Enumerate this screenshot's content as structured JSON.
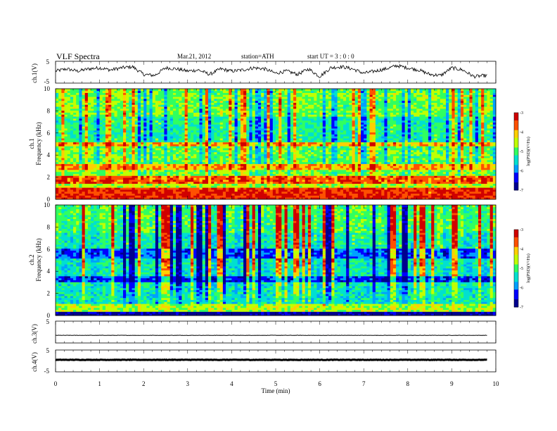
{
  "header": {
    "title": "VLF  Spectra",
    "date": "Mar.21, 2012",
    "station": "station=ATH",
    "start": "start  UT  =   3  : 0  : 0"
  },
  "colors": {
    "colormap": [
      "#000000",
      "#00008f",
      "#0000ff",
      "#00a0ff",
      "#00e0d0",
      "#30ff60",
      "#c0ff00",
      "#ffd000",
      "#ff5000",
      "#d00000",
      "#ffffff"
    ]
  },
  "chart_data": [
    {
      "type": "line",
      "name": "ch1-waveform",
      "ylabel": "ch.1(V)",
      "ylim": [
        -5,
        5
      ],
      "yticks": [
        "5",
        "-5"
      ],
      "xlim": [
        0,
        10
      ],
      "x": [
        0,
        0.25,
        0.5,
        0.75,
        1,
        1.25,
        1.5,
        1.75,
        2,
        2.25,
        2.5,
        2.75,
        3,
        3.25,
        3.5,
        3.75,
        4,
        4.25,
        4.5,
        4.75,
        5,
        5.25,
        5.5,
        5.75,
        6,
        6.25,
        6.5,
        6.75,
        7,
        7.25,
        7.5,
        7.75,
        8,
        8.25,
        8.5,
        8.75,
        9,
        9.25,
        9.5,
        9.8
      ],
      "y": [
        0.5,
        1.5,
        0.5,
        1.5,
        2.0,
        1.0,
        2.0,
        2.5,
        -1.0,
        -1.5,
        2.0,
        1.5,
        0.5,
        1.0,
        -1.0,
        1.5,
        0.5,
        1.0,
        2.0,
        1.5,
        -0.5,
        0.5,
        -1.0,
        1.5,
        -2.0,
        2.0,
        2.5,
        1.5,
        -0.5,
        0.5,
        1.5,
        3.0,
        2.0,
        1.0,
        -1.0,
        -1.5,
        2.0,
        1.0,
        -2.0,
        -1.5
      ]
    },
    {
      "type": "heatmap",
      "name": "ch1-spectrogram",
      "ylabel": "Frequency  (kHz)",
      "channel_label": "ch.1",
      "xlim": [
        0,
        10
      ],
      "ylim": [
        0,
        10
      ],
      "yticks": [
        "0",
        "2",
        "4",
        "6",
        "8",
        "10"
      ],
      "colorbar": {
        "label": "log(PSD)(V²/Hz)",
        "range": [
          -7,
          -3
        ],
        "ticks": [
          "-3",
          "-4",
          "-5",
          "-6",
          "-7"
        ]
      },
      "bands_khz": [
        [
          0,
          1,
          -3.4
        ],
        [
          1,
          1.5,
          -4.6
        ],
        [
          1.5,
          2.2,
          -3.6
        ],
        [
          2.2,
          2.6,
          -4.8
        ],
        [
          2.6,
          3.2,
          -3.9
        ],
        [
          3.2,
          4.8,
          -4.9
        ],
        [
          4.8,
          5.2,
          -3.9
        ],
        [
          5.2,
          7.5,
          -5.2
        ],
        [
          7.5,
          10,
          -4.8
        ]
      ]
    },
    {
      "type": "heatmap",
      "name": "ch2-spectrogram",
      "ylabel": "Frequency  (kHz)",
      "channel_label": "ch.2",
      "xlim": [
        0,
        10
      ],
      "ylim": [
        0,
        10
      ],
      "yticks": [
        "0",
        "2",
        "4",
        "6",
        "8",
        "10"
      ],
      "colorbar": {
        "label": "log(PSD)(V²/Hz)",
        "range": [
          -7,
          -3
        ],
        "ticks": [
          "-3",
          "-4",
          "-5",
          "-6",
          "-7"
        ]
      },
      "bands_khz": [
        [
          0,
          0.3,
          -6.8
        ],
        [
          0.3,
          1,
          -4.6
        ],
        [
          1,
          3,
          -5.4
        ],
        [
          3,
          3.6,
          -6.3
        ],
        [
          3.6,
          5.2,
          -5.4
        ],
        [
          5.2,
          6,
          -6.2
        ],
        [
          6,
          7.5,
          -5.3
        ],
        [
          7.5,
          10,
          -5.0
        ]
      ]
    },
    {
      "type": "line",
      "name": "ch3-waveform",
      "ylabel": "ch.3(V)",
      "ylim": [
        -5,
        5
      ],
      "yticks": [
        "5"
      ],
      "xlim": [
        0,
        10
      ],
      "x": [
        0,
        9.8
      ],
      "y": [
        -1.5,
        -1.5
      ]
    },
    {
      "type": "line",
      "name": "ch4-waveform",
      "ylabel": "ch.4(V)",
      "ylim": [
        -5,
        5
      ],
      "yticks": [
        "5",
        "-5"
      ],
      "xlim": [
        0,
        10
      ],
      "x": [
        0,
        9.8
      ],
      "y": [
        0.5,
        0.5
      ]
    }
  ],
  "xaxis": {
    "label": "Time  (min)",
    "ticks": [
      "0",
      "1",
      "2",
      "3",
      "4",
      "5",
      "6",
      "7",
      "8",
      "9",
      "10"
    ]
  }
}
